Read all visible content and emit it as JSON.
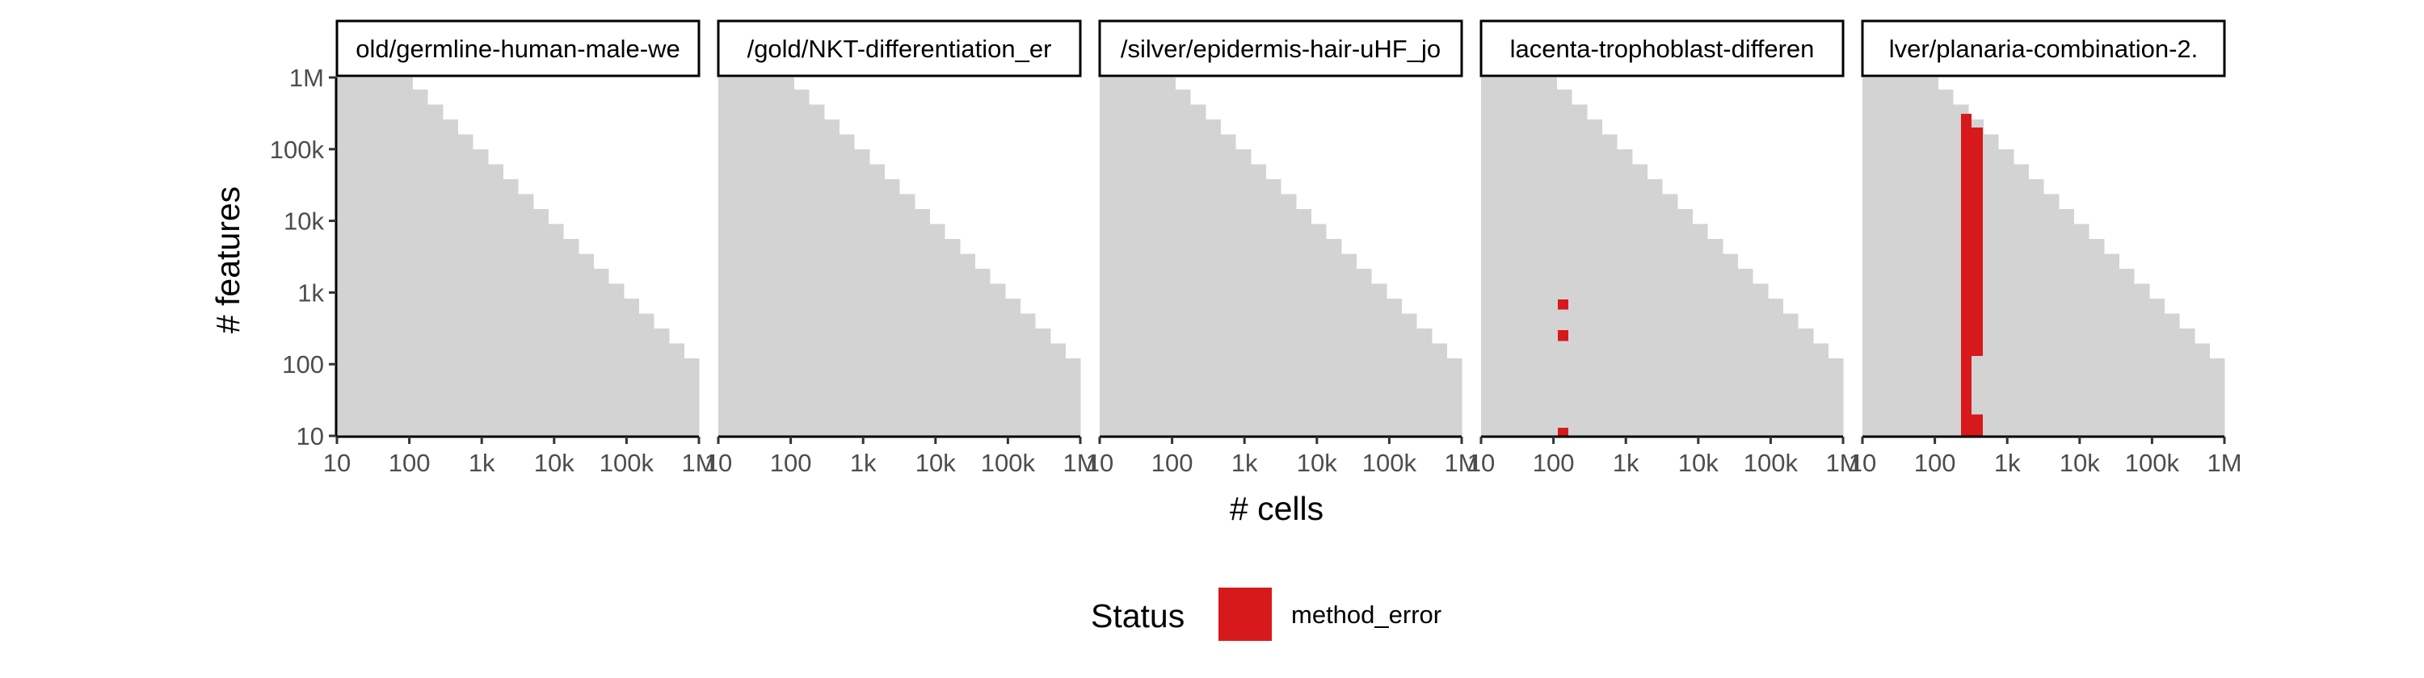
{
  "chart_data": {
    "type": "heatmap",
    "xlabel": "# cells",
    "ylabel": "# features",
    "x_scale": "log10",
    "y_scale": "log10",
    "xlim": [
      10,
      1000000
    ],
    "ylim": [
      10,
      1000000
    ],
    "x_ticks": [
      {
        "value": 10,
        "label": "10"
      },
      {
        "value": 100,
        "label": "100"
      },
      {
        "value": 1000,
        "label": "1k"
      },
      {
        "value": 10000,
        "label": "10k"
      },
      {
        "value": 100000,
        "label": "100k"
      },
      {
        "value": 1000000,
        "label": "1M"
      }
    ],
    "y_ticks": [
      {
        "value": 10,
        "label": "10"
      },
      {
        "value": 100,
        "label": "100"
      },
      {
        "value": 1000,
        "label": "1k"
      },
      {
        "value": 10000,
        "label": "10k"
      },
      {
        "value": 100000,
        "label": "100k"
      },
      {
        "value": 1000000,
        "label": "1M"
      }
    ],
    "background_region": {
      "description": "grey staircase region",
      "color": "#d3d3d3",
      "max_total_cells_x_features": 120000000.0
    },
    "panels": [
      {
        "strip_label": "old/germline-human-male-we",
        "status_cells": []
      },
      {
        "strip_label": "/gold/NKT-differentiation_er",
        "status_cells": []
      },
      {
        "strip_label": "/silver/epidermis-hair-uHF_jo",
        "status_cells": []
      },
      {
        "strip_label": "lacenta-trophoblast-differen",
        "status_cells": [
          {
            "x": [
              115,
              160
            ],
            "y": [
              580,
              800
            ],
            "status": "method_error"
          },
          {
            "x": [
              115,
              160
            ],
            "y": [
              210,
              300
            ],
            "status": "method_error"
          },
          {
            "x": [
              115,
              160
            ],
            "y": [
              10,
              13
            ],
            "status": "method_error"
          }
        ]
      },
      {
        "strip_label": "lver/planaria-combination-2.",
        "status_cells": [
          {
            "x": [
              230,
              320
            ],
            "y": [
              10,
              310000
            ],
            "status": "method_error"
          },
          {
            "x": [
              320,
              460
            ],
            "y": [
              10,
              20
            ],
            "status": "method_error"
          },
          {
            "x": [
              320,
              460
            ],
            "y": [
              130,
              200000
            ],
            "status": "method_error"
          }
        ]
      }
    ],
    "legend": {
      "title": "Status",
      "position": "bottom",
      "entries": [
        {
          "label": "method_error",
          "color": "#d7191c"
        }
      ]
    }
  }
}
